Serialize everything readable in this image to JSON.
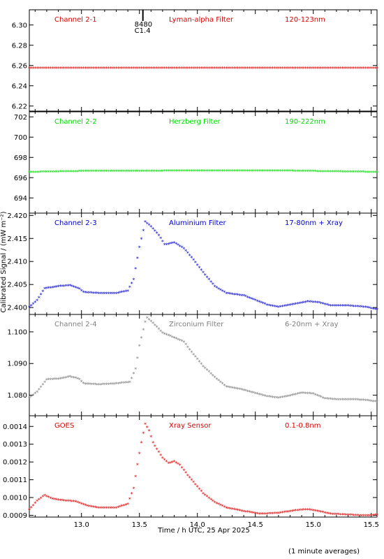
{
  "figure": {
    "xlabel": "Time / h UTC, 25 Apr 2025",
    "ylabel": "Calibrated Signal / (mW m⁻²)",
    "footnote": "(1 minute averages)",
    "x_ticks": [
      "13.0",
      "13.5",
      "14.0",
      "14.5",
      "15.0",
      "15.5"
    ]
  },
  "chart_data": [
    {
      "type": "scatter",
      "panel": "Channel 2-1",
      "labels": [
        "Channel 2-1",
        "Lyman-alpha Filter",
        "120-123nm"
      ],
      "color": "#dd0000",
      "ylim": [
        6.215,
        6.315
      ],
      "y_ticks": [
        "6.22",
        "6.24",
        "6.26",
        "6.28",
        "6.30"
      ],
      "y_tick_values": [
        6.22,
        6.24,
        6.26,
        6.28,
        6.3
      ],
      "flare_marker": {
        "x": 13.53,
        "labels": [
          "8480",
          "C1.4"
        ]
      },
      "xlim": [
        12.55,
        15.55
      ],
      "points": [
        [
          12.55,
          6.257
        ],
        [
          15.55,
          6.257
        ]
      ]
    },
    {
      "type": "scatter",
      "panel": "Channel 2-2",
      "labels": [
        "Channel 2-2",
        "Herzberg Filter",
        "190-222nm"
      ],
      "color": "#00dd00",
      "ylim": [
        692.5,
        702.5
      ],
      "y_ticks": [
        "694",
        "696",
        "698",
        "700",
        "702"
      ],
      "y_tick_values": [
        694,
        696,
        698,
        700,
        702
      ],
      "xlim": [
        12.55,
        15.55
      ],
      "points": [
        [
          12.55,
          696.5
        ],
        [
          13.05,
          696.6
        ],
        [
          14.65,
          696.65
        ],
        [
          15.55,
          696.5
        ]
      ]
    },
    {
      "type": "scatter",
      "panel": "Channel 2-3",
      "labels": [
        "Channel 2-3",
        "Aluminium Filter",
        "17-80nm + Xray"
      ],
      "color": "#0000cc",
      "ylim": [
        2.3985,
        2.4205
      ],
      "y_ticks": [
        "2.400",
        "2.405",
        "2.410",
        "2.415",
        "2.420"
      ],
      "y_tick_values": [
        2.4,
        2.405,
        2.41,
        2.415,
        2.42
      ],
      "xlim": [
        12.55,
        15.55
      ],
      "points": [
        [
          12.55,
          2.4
        ],
        [
          12.62,
          2.4015
        ],
        [
          12.68,
          2.404
        ],
        [
          12.8,
          2.4045
        ],
        [
          12.9,
          2.4047
        ],
        [
          12.98,
          2.404
        ],
        [
          13.02,
          2.4032
        ],
        [
          13.15,
          2.403
        ],
        [
          13.3,
          2.403
        ],
        [
          13.4,
          2.4035
        ],
        [
          13.45,
          2.406
        ],
        [
          13.5,
          2.413
        ],
        [
          13.55,
          2.4185
        ],
        [
          13.6,
          2.4175
        ],
        [
          13.67,
          2.4155
        ],
        [
          13.72,
          2.4135
        ],
        [
          13.8,
          2.414
        ],
        [
          13.88,
          2.4128
        ],
        [
          13.95,
          2.4108
        ],
        [
          14.05,
          2.4075
        ],
        [
          14.15,
          2.4045
        ],
        [
          14.25,
          2.403
        ],
        [
          14.4,
          2.4025
        ],
        [
          14.5,
          2.4015
        ],
        [
          14.6,
          2.4005
        ],
        [
          14.7,
          2.4
        ],
        [
          14.85,
          2.4007
        ],
        [
          14.95,
          2.4012
        ],
        [
          15.05,
          2.401
        ],
        [
          15.15,
          2.4003
        ],
        [
          15.3,
          2.4003
        ],
        [
          15.45,
          2.4
        ],
        [
          15.55,
          2.3995
        ]
      ]
    },
    {
      "type": "scatter",
      "panel": "Channel 2-4",
      "labels": [
        "Channel 2-4",
        "Zirconium Filter",
        "6-20nm + Xray"
      ],
      "color": "#808080",
      "ylim": [
        1.0735,
        1.1055
      ],
      "y_ticks": [
        "1.080",
        "1.090",
        "1.100"
      ],
      "y_tick_values": [
        1.08,
        1.09,
        1.1
      ],
      "xlim": [
        12.55,
        15.55
      ],
      "points": [
        [
          12.55,
          1.079
        ],
        [
          12.62,
          1.081
        ],
        [
          12.7,
          1.0848
        ],
        [
          12.8,
          1.085
        ],
        [
          12.9,
          1.0857
        ],
        [
          12.98,
          1.085
        ],
        [
          13.02,
          1.0835
        ],
        [
          13.15,
          1.0832
        ],
        [
          13.3,
          1.0835
        ],
        [
          13.42,
          1.084
        ],
        [
          13.47,
          1.0885
        ],
        [
          13.5,
          1.0955
        ],
        [
          13.56,
          1.1045
        ],
        [
          13.62,
          1.1025
        ],
        [
          13.7,
          1.0995
        ],
        [
          13.8,
          1.098
        ],
        [
          13.88,
          1.0968
        ],
        [
          13.95,
          1.0935
        ],
        [
          14.05,
          1.089
        ],
        [
          14.15,
          1.0855
        ],
        [
          14.25,
          1.0825
        ],
        [
          14.4,
          1.0815
        ],
        [
          14.5,
          1.0805
        ],
        [
          14.6,
          1.0795
        ],
        [
          14.7,
          1.079
        ],
        [
          14.8,
          1.0797
        ],
        [
          14.9,
          1.0806
        ],
        [
          15.0,
          1.0803
        ],
        [
          15.1,
          1.0788
        ],
        [
          15.2,
          1.0785
        ],
        [
          15.35,
          1.0785
        ],
        [
          15.45,
          1.0783
        ],
        [
          15.55,
          1.0778
        ]
      ]
    },
    {
      "type": "scatter",
      "panel": "GOES",
      "labels": [
        "GOES",
        "Xray Sensor",
        "0.1-0.8nm"
      ],
      "color": "#dd0000",
      "ylim": [
        0.00089,
        0.00146
      ],
      "y_ticks": [
        "0.0009",
        "0.0010",
        "0.0011",
        "0.0012",
        "0.0013",
        "0.0014"
      ],
      "y_tick_values": [
        0.0009,
        0.001,
        0.0011,
        0.0012,
        0.0013,
        0.0014
      ],
      "xlim": [
        12.55,
        15.55
      ],
      "points": [
        [
          12.55,
          0.00093
        ],
        [
          12.62,
          0.00098
        ],
        [
          12.68,
          0.00101
        ],
        [
          12.75,
          0.00099
        ],
        [
          12.85,
          0.00098
        ],
        [
          12.95,
          0.000975
        ],
        [
          13.05,
          0.00095
        ],
        [
          13.15,
          0.00094
        ],
        [
          13.3,
          0.00094
        ],
        [
          13.4,
          0.00096
        ],
        [
          13.45,
          0.00105
        ],
        [
          13.48,
          0.00117
        ],
        [
          13.52,
          0.00132
        ],
        [
          13.55,
          0.00141
        ],
        [
          13.58,
          0.00138
        ],
        [
          13.62,
          0.0013
        ],
        [
          13.7,
          0.00122
        ],
        [
          13.75,
          0.00119
        ],
        [
          13.8,
          0.0012
        ],
        [
          13.85,
          0.00118
        ],
        [
          13.92,
          0.00112
        ],
        [
          14.05,
          0.00102
        ],
        [
          14.15,
          0.00097
        ],
        [
          14.25,
          0.00094
        ],
        [
          14.4,
          0.00092
        ],
        [
          14.55,
          0.000905
        ],
        [
          14.7,
          0.00091
        ],
        [
          14.85,
          0.000925
        ],
        [
          14.95,
          0.00093
        ],
        [
          15.05,
          0.00092
        ],
        [
          15.15,
          0.000905
        ],
        [
          15.3,
          0.0009
        ],
        [
          15.45,
          0.000895
        ],
        [
          15.55,
          0.0009
        ]
      ]
    }
  ]
}
